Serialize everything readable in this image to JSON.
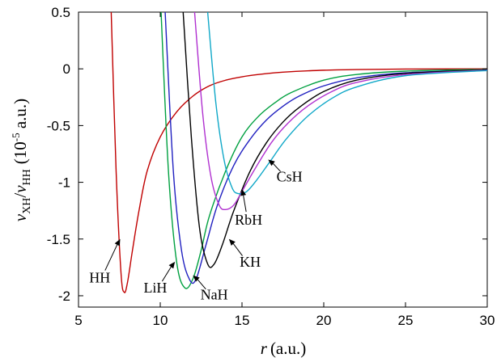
{
  "chart_data": {
    "type": "line",
    "xlabel": {
      "var": "r",
      "unit": "(a.u.)"
    },
    "ylabel": {
      "num_var": "v",
      "num_sub": "XH",
      "slash": "/",
      "den_var": "v",
      "den_sub": "HH",
      "unit_pre": "(10",
      "unit_exp": "-5",
      "unit_post": " a.u.)"
    },
    "xlim": [
      5,
      30
    ],
    "ylim": [
      -2.1,
      0.5
    ],
    "xticks": [
      5,
      10,
      15,
      20,
      25,
      30
    ],
    "yticks": [
      0.5,
      0,
      -0.5,
      -1,
      -1.5,
      -2
    ],
    "ytick_labels": [
      "0.5",
      "0",
      "-0.5",
      "-1",
      "-1.5",
      "-2"
    ],
    "xtick_labels": [
      "5",
      "10",
      "15",
      "20",
      "25",
      "30"
    ],
    "grid": false,
    "series": [
      {
        "name": "HH",
        "color": "#c00000",
        "x": [
          7.0,
          7.3,
          7.6,
          7.8,
          8.0,
          8.3,
          8.7,
          9.2,
          10,
          11,
          12,
          13,
          14,
          15,
          16,
          17,
          18,
          20,
          22,
          25,
          30
        ],
        "y": [
          0.5,
          -0.9,
          -1.8,
          -1.97,
          -1.88,
          -1.6,
          -1.25,
          -0.9,
          -0.6,
          -0.38,
          -0.24,
          -0.15,
          -0.1,
          -0.07,
          -0.05,
          -0.035,
          -0.025,
          -0.012,
          -0.006,
          -0.002,
          0.0
        ]
      },
      {
        "name": "LiH",
        "color": "#00a040",
        "x": [
          10.05,
          10.5,
          11.0,
          11.5,
          12.0,
          12.5,
          13.0,
          14,
          15,
          16,
          17,
          18,
          20,
          22,
          25,
          30
        ],
        "y": [
          0.5,
          -0.9,
          -1.7,
          -1.93,
          -1.85,
          -1.6,
          -1.3,
          -0.9,
          -0.6,
          -0.42,
          -0.3,
          -0.21,
          -0.1,
          -0.05,
          -0.02,
          -0.005
        ]
      },
      {
        "name": "NaH",
        "color": "#2020c0",
        "x": [
          10.3,
          10.8,
          11.3,
          11.8,
          12.2,
          12.8,
          13.5,
          14.5,
          15.5,
          16.5,
          17.5,
          18.5,
          20,
          22,
          25,
          30
        ],
        "y": [
          0.5,
          -0.9,
          -1.6,
          -1.86,
          -1.85,
          -1.55,
          -1.2,
          -0.85,
          -0.62,
          -0.45,
          -0.33,
          -0.24,
          -0.15,
          -0.08,
          -0.035,
          -0.01
        ]
      },
      {
        "name": "KH",
        "color": "#000000",
        "x": [
          11.4,
          11.9,
          12.4,
          12.9,
          13.3,
          13.8,
          14.5,
          15.5,
          16.5,
          17.5,
          18.5,
          20,
          22,
          25,
          30
        ],
        "y": [
          0.5,
          -0.6,
          -1.4,
          -1.72,
          -1.72,
          -1.55,
          -1.25,
          -0.9,
          -0.65,
          -0.47,
          -0.34,
          -0.2,
          -0.1,
          -0.04,
          -0.01
        ]
      },
      {
        "name": "RbH",
        "color": "#b030d0",
        "x": [
          12.1,
          12.6,
          13.1,
          13.6,
          14.0,
          14.5,
          15.0,
          15.8,
          16.8,
          17.8,
          19,
          20.5,
          22,
          25,
          30
        ],
        "y": [
          0.5,
          -0.4,
          -0.95,
          -1.2,
          -1.24,
          -1.2,
          -1.08,
          -0.88,
          -0.65,
          -0.48,
          -0.33,
          -0.2,
          -0.12,
          -0.05,
          -0.012
        ]
      },
      {
        "name": "CsH",
        "color": "#10a8c8",
        "x": [
          12.9,
          13.4,
          13.9,
          14.4,
          14.8,
          15.3,
          15.9,
          16.7,
          17.7,
          19,
          20.5,
          22,
          25,
          30
        ],
        "y": [
          0.5,
          -0.3,
          -0.8,
          -1.05,
          -1.1,
          -1.08,
          -0.98,
          -0.82,
          -0.62,
          -0.42,
          -0.26,
          -0.16,
          -0.06,
          -0.015
        ]
      }
    ],
    "annotations": [
      {
        "text": "HH",
        "series": "HH",
        "point": [
          7.55,
          -1.5
        ],
        "label_at": [
          6.3,
          -1.84
        ]
      },
      {
        "text": "LiH",
        "series": "LiH",
        "point": [
          10.9,
          -1.7
        ],
        "label_at": [
          9.7,
          -1.93
        ]
      },
      {
        "text": "NaH",
        "series": "NaH",
        "point": [
          12.0,
          -1.82
        ],
        "label_at": [
          13.3,
          -1.99
        ]
      },
      {
        "text": "KH",
        "series": "KH",
        "point": [
          14.2,
          -1.5
        ],
        "label_at": [
          15.5,
          -1.7
        ]
      },
      {
        "text": "RbH",
        "series": "RbH",
        "point": [
          15.0,
          -1.06
        ],
        "label_at": [
          15.4,
          -1.33
        ]
      },
      {
        "text": "CsH",
        "series": "CsH",
        "point": [
          16.6,
          -0.8
        ],
        "label_at": [
          17.9,
          -0.95
        ]
      }
    ]
  }
}
